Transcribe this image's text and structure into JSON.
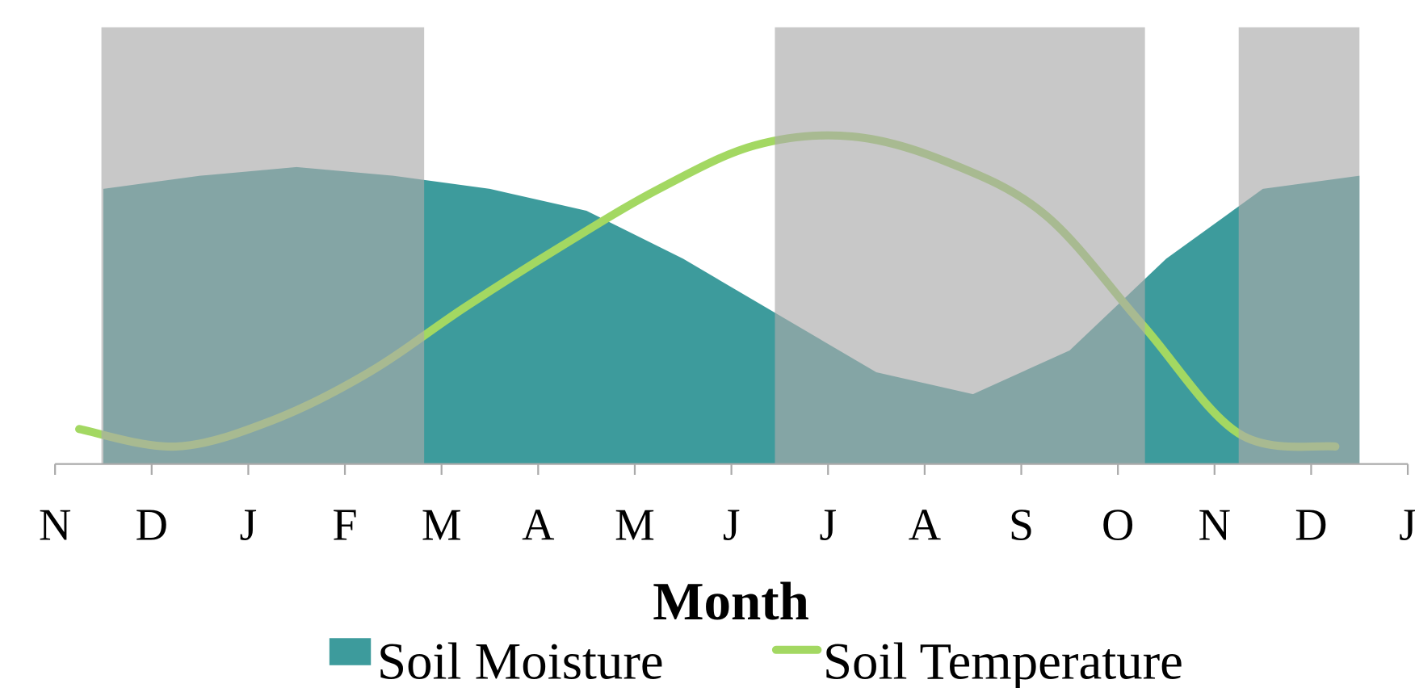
{
  "chart_data": {
    "type": "area-line",
    "x_label": "Month",
    "xlim": [
      0,
      14
    ],
    "xticks": [
      {
        "value": 0,
        "label": "N"
      },
      {
        "value": 1,
        "label": "D"
      },
      {
        "value": 2,
        "label": "J"
      },
      {
        "value": 3,
        "label": "F"
      },
      {
        "value": 4,
        "label": "M"
      },
      {
        "value": 5,
        "label": "A"
      },
      {
        "value": 6,
        "label": "M"
      },
      {
        "value": 7,
        "label": "J"
      },
      {
        "value": 8,
        "label": "J"
      },
      {
        "value": 9,
        "label": "A"
      },
      {
        "value": 10,
        "label": "S"
      },
      {
        "value": 11,
        "label": "O"
      },
      {
        "value": 12,
        "label": "N"
      },
      {
        "value": 13,
        "label": "D"
      },
      {
        "value": 14,
        "label": "J"
      }
    ],
    "ylim": [
      0,
      100
    ],
    "shaded_regions": [
      [
        0.48,
        3.82
      ],
      [
        7.45,
        11.28
      ],
      [
        12.25,
        13.5
      ]
    ],
    "shade_color": "#aaaaaa",
    "legend": "bottom",
    "series": [
      {
        "name": "Soil Moisture",
        "kind": "area",
        "color": "#3d9b9c",
        "x": [
          0.5,
          1.5,
          2.5,
          3.5,
          4.5,
          5.5,
          6.5,
          7.5,
          8.5,
          9.5,
          10.5,
          11.5,
          12.5,
          13.5
        ],
        "values": [
          63,
          66,
          68,
          66,
          63,
          58,
          47,
          34,
          21,
          16,
          26,
          47,
          63,
          66
        ]
      },
      {
        "name": "Soil Temperature",
        "kind": "line",
        "color": "#a3d862",
        "x": [
          0.25,
          1.25,
          2.25,
          3.25,
          4.25,
          5.25,
          6.25,
          7.25,
          8.25,
          9.25,
          10.25,
          11.25,
          12.25,
          13.25
        ],
        "values": [
          8,
          4,
          10,
          21,
          36,
          50,
          63,
          73,
          75,
          69,
          57,
          32,
          7,
          4
        ]
      }
    ]
  }
}
